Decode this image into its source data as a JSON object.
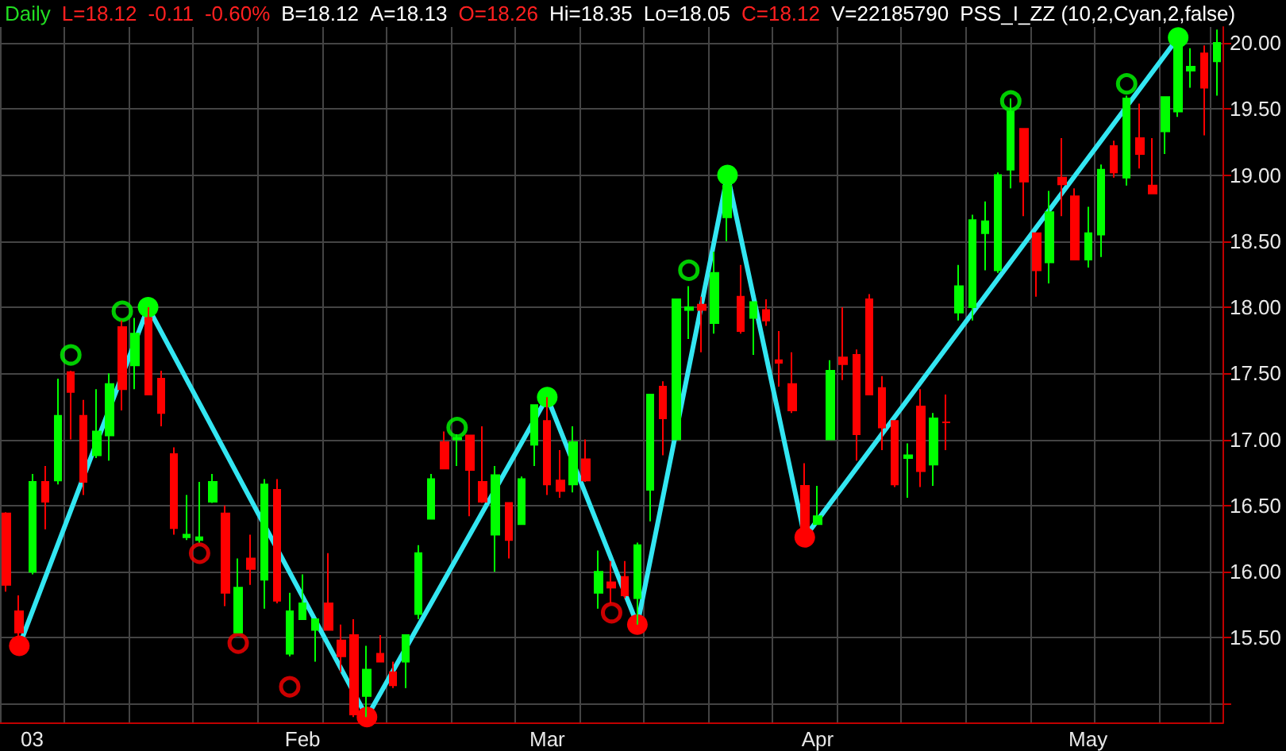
{
  "chart_data": {
    "type": "candlestick",
    "title": "Daily",
    "annotations": [
      "L=18.12",
      "-0.11",
      "-0.60%",
      "B=18.12",
      "A=18.13",
      "O=18.26",
      "Hi=18.35",
      "Lo=18.05",
      "C=18.12",
      "V=22185790",
      "PSS_I_ZZ (10,2,Cyan,2,false)"
    ],
    "categories": [
      null,
      null,
      "03",
      null,
      null,
      null,
      null,
      null,
      null,
      null,
      null,
      null,
      null,
      null,
      null,
      null,
      null,
      null,
      null,
      null,
      null,
      null,
      null,
      "Feb",
      null,
      null,
      null,
      null,
      null,
      null,
      null,
      null,
      null,
      null,
      null,
      null,
      null,
      null,
      null,
      null,
      null,
      null,
      "Mar",
      null,
      null,
      null,
      null,
      null,
      null,
      null,
      null,
      null,
      null,
      null,
      null,
      null,
      null,
      null,
      null,
      null,
      null,
      null,
      null,
      "Apr",
      null,
      null,
      null,
      null,
      null,
      null,
      null,
      null,
      null,
      null,
      null,
      null,
      null,
      null,
      null,
      null,
      null,
      null,
      null,
      null,
      "May",
      null,
      null,
      null,
      null,
      null,
      null,
      null,
      null,
      null,
      null
    ],
    "ohlc": [
      [
        16.44,
        16.45,
        15.85,
        15.9
      ],
      [
        15.7,
        15.82,
        15.44,
        15.54
      ],
      [
        16.0,
        16.74,
        15.98,
        16.68
      ],
      [
        16.68,
        16.8,
        16.32,
        16.53
      ],
      [
        16.69,
        17.46,
        16.66,
        17.18
      ],
      [
        17.51,
        17.52,
        17.0,
        17.36
      ],
      [
        17.18,
        17.3,
        16.58,
        16.68
      ],
      [
        16.88,
        17.38,
        16.86,
        17.06
      ],
      [
        17.03,
        17.5,
        16.84,
        17.42
      ],
      [
        17.85,
        17.9,
        17.22,
        17.38
      ],
      [
        17.56,
        17.92,
        17.38,
        17.8
      ],
      [
        17.92,
        18.0,
        17.34,
        17.34
      ],
      [
        17.46,
        17.52,
        17.1,
        17.2
      ],
      [
        16.89,
        16.94,
        16.28,
        16.33
      ],
      [
        16.26,
        16.58,
        16.24,
        16.28
      ],
      [
        16.24,
        16.68,
        16.22,
        16.26
      ],
      [
        16.53,
        16.74,
        16.52,
        16.68
      ],
      [
        16.44,
        16.5,
        15.74,
        15.84
      ],
      [
        15.54,
        16.1,
        15.54,
        15.88
      ],
      [
        16.1,
        16.28,
        15.9,
        16.02
      ],
      [
        15.94,
        16.7,
        15.72,
        16.66
      ],
      [
        16.62,
        16.7,
        15.76,
        15.78
      ],
      [
        15.38,
        15.84,
        15.36,
        15.7
      ],
      [
        15.64,
        15.98,
        15.64,
        15.76
      ],
      [
        15.56,
        15.64,
        15.32,
        15.64
      ],
      [
        15.76,
        16.14,
        15.56,
        15.56
      ],
      [
        15.48,
        15.6,
        15.24,
        15.36
      ],
      [
        15.52,
        15.64,
        14.9,
        14.92
      ],
      [
        15.06,
        15.44,
        14.9,
        15.26
      ],
      [
        15.38,
        15.52,
        15.32,
        15.32
      ],
      [
        15.24,
        15.32,
        15.12,
        15.14
      ],
      [
        15.32,
        15.52,
        15.12,
        15.52
      ],
      [
        15.68,
        16.2,
        15.64,
        16.14
      ],
      [
        16.4,
        16.74,
        16.4,
        16.7
      ],
      [
        16.98,
        17.06,
        16.78,
        16.78
      ],
      [
        17.0,
        17.04,
        16.8,
        17.01
      ],
      [
        17.03,
        17.03,
        16.42,
        16.77
      ],
      [
        16.68,
        17.1,
        16.52,
        16.53
      ],
      [
        16.28,
        16.8,
        16.0,
        16.73
      ],
      [
        16.52,
        16.52,
        16.1,
        16.24
      ],
      [
        16.36,
        16.72,
        16.36,
        16.7
      ],
      [
        16.96,
        17.26,
        16.8,
        17.26
      ],
      [
        17.14,
        17.32,
        16.58,
        16.66
      ],
      [
        16.69,
        16.92,
        16.56,
        16.61
      ],
      [
        16.66,
        17.1,
        16.6,
        16.98
      ],
      [
        16.85,
        17.0,
        16.68,
        16.69
      ],
      [
        15.84,
        16.16,
        15.72,
        16.0
      ],
      [
        15.92,
        16.08,
        15.76,
        15.88
      ],
      [
        15.96,
        16.08,
        15.8,
        15.82
      ],
      [
        15.8,
        16.22,
        15.6,
        16.2
      ],
      [
        16.62,
        17.34,
        16.38,
        17.34
      ],
      [
        17.4,
        17.44,
        16.88,
        17.16
      ],
      [
        17.0,
        18.06,
        17.0,
        18.06
      ],
      [
        17.98,
        18.16,
        17.76,
        18.0
      ],
      [
        18.02,
        18.08,
        17.66,
        17.98
      ],
      [
        17.88,
        18.42,
        17.8,
        18.26
      ],
      [
        18.68,
        19.0,
        18.5,
        18.92
      ],
      [
        18.08,
        18.32,
        17.8,
        17.82
      ],
      [
        17.92,
        18.04,
        17.64,
        18.04
      ],
      [
        17.98,
        18.06,
        17.86,
        17.9
      ],
      [
        17.6,
        17.82,
        17.4,
        17.58
      ],
      [
        17.42,
        17.66,
        17.2,
        17.22
      ],
      [
        16.65,
        16.82,
        16.26,
        16.28
      ],
      [
        16.36,
        16.65,
        16.36,
        16.42
      ],
      [
        17.0,
        17.6,
        17.0,
        17.52
      ],
      [
        17.62,
        18.0,
        17.45,
        17.57
      ],
      [
        17.64,
        17.68,
        16.84,
        17.04
      ],
      [
        18.06,
        18.1,
        17.34,
        17.34
      ],
      [
        17.39,
        17.48,
        16.92,
        17.09
      ],
      [
        17.14,
        17.14,
        16.64,
        16.66
      ],
      [
        16.86,
        16.97,
        16.56,
        16.88
      ],
      [
        17.25,
        17.38,
        16.64,
        16.76
      ],
      [
        16.81,
        17.2,
        16.65,
        17.16
      ],
      [
        17.13,
        17.34,
        16.92,
        17.13
      ],
      [
        17.96,
        18.32,
        17.9,
        18.16
      ],
      [
        18.0,
        18.7,
        17.9,
        18.66
      ],
      [
        18.56,
        18.8,
        18.28,
        18.65
      ],
      [
        18.28,
        19.02,
        18.26,
        19.0
      ],
      [
        19.04,
        19.58,
        18.9,
        19.48
      ],
      [
        19.35,
        19.35,
        18.69,
        18.95
      ],
      [
        18.56,
        18.56,
        18.08,
        18.28
      ],
      [
        18.34,
        18.88,
        18.18,
        18.72
      ],
      [
        18.98,
        19.28,
        18.69,
        18.93
      ],
      [
        18.84,
        18.9,
        18.36,
        18.36
      ],
      [
        18.36,
        18.76,
        18.3,
        18.56
      ],
      [
        18.55,
        19.08,
        18.38,
        19.04
      ],
      [
        19.22,
        19.26,
        18.98,
        19.02
      ],
      [
        18.98,
        19.6,
        18.92,
        19.58
      ],
      [
        19.28,
        19.54,
        19.05,
        19.16
      ],
      [
        18.92,
        19.28,
        18.86,
        18.86
      ],
      [
        19.33,
        19.59,
        19.16,
        19.59
      ],
      [
        19.48,
        20.04,
        19.44,
        20.02
      ],
      [
        19.79,
        19.96,
        19.66,
        19.82
      ],
      [
        19.92,
        19.98,
        19.3,
        19.66
      ],
      [
        19.86,
        20.1,
        19.6,
        20.0
      ]
    ],
    "series": [
      {
        "type": "line",
        "color": "#33e6f2",
        "marker": "circle",
        "line_style": "solid",
        "values": [
          null,
          15.44,
          null,
          null,
          null,
          null,
          null,
          null,
          null,
          null,
          null,
          18.0,
          null,
          null,
          null,
          null,
          null,
          null,
          null,
          null,
          null,
          null,
          null,
          null,
          null,
          null,
          null,
          null,
          14.9,
          null,
          null,
          null,
          null,
          null,
          null,
          null,
          null,
          null,
          null,
          null,
          null,
          null,
          17.32,
          null,
          null,
          null,
          null,
          null,
          null,
          15.6,
          null,
          null,
          null,
          null,
          null,
          null,
          19.0,
          null,
          null,
          null,
          null,
          null,
          16.26,
          null,
          null,
          null,
          null,
          null,
          null,
          null,
          null,
          null,
          null,
          null,
          null,
          null,
          null,
          null,
          null,
          null,
          null,
          null,
          null,
          null,
          null,
          null,
          null,
          null,
          null,
          null,
          null,
          20.04,
          null,
          null,
          null
        ],
        "colors": [
          null,
          "#ff0000",
          null,
          null,
          null,
          null,
          null,
          null,
          null,
          null,
          null,
          "#00ff00",
          null,
          null,
          null,
          null,
          null,
          null,
          null,
          null,
          null,
          null,
          null,
          null,
          null,
          null,
          null,
          null,
          "#ff0000",
          null,
          null,
          null,
          null,
          null,
          null,
          null,
          null,
          null,
          null,
          null,
          null,
          null,
          "#00ff00",
          null,
          null,
          null,
          null,
          null,
          null,
          "#ff0000",
          null,
          null,
          null,
          null,
          null,
          null,
          "#00ff00",
          null,
          null,
          null,
          null,
          null,
          "#ff0000",
          null,
          null,
          null,
          null,
          null,
          null,
          null,
          null,
          null,
          null,
          null,
          null,
          null,
          null,
          null,
          null,
          null,
          null,
          null,
          null,
          null,
          null,
          null,
          null,
          null,
          null,
          null,
          null,
          "#00ff00",
          null,
          null,
          null
        ]
      },
      {
        "type": "scatter",
        "color": "#00ff00",
        "marker": "circle",
        "values": [
          null,
          null,
          null,
          null,
          null,
          17.64,
          null,
          null,
          null,
          17.97,
          null,
          null,
          null,
          null,
          null,
          null,
          null,
          null,
          null,
          null,
          null,
          null,
          null,
          null,
          null,
          null,
          null,
          null,
          null,
          null,
          null,
          null,
          null,
          null,
          null,
          17.09,
          null,
          null,
          null,
          null,
          null,
          null,
          null,
          null,
          null,
          null,
          null,
          null,
          null,
          null,
          null,
          null,
          null,
          18.28,
          null,
          null,
          null,
          null,
          null,
          null,
          null,
          null,
          null,
          null,
          null,
          null,
          null,
          null,
          null,
          null,
          null,
          null,
          null,
          null,
          null,
          null,
          null,
          null,
          19.56,
          null,
          null,
          null,
          null,
          null,
          null,
          null,
          null,
          19.69,
          null,
          null,
          null,
          null,
          null,
          null,
          null
        ]
      },
      {
        "type": "scatter",
        "color": "#ff0000",
        "marker": "circle",
        "values": [
          null,
          null,
          null,
          null,
          null,
          null,
          null,
          null,
          null,
          null,
          null,
          null,
          null,
          null,
          null,
          16.14,
          null,
          null,
          15.46,
          null,
          null,
          null,
          15.13,
          null,
          null,
          null,
          null,
          null,
          null,
          null,
          null,
          null,
          null,
          null,
          null,
          null,
          null,
          null,
          null,
          null,
          null,
          null,
          null,
          null,
          null,
          null,
          null,
          15.69,
          null,
          null,
          null,
          null,
          null,
          null,
          null,
          null,
          null,
          null,
          null,
          null,
          null,
          null,
          null,
          null,
          null,
          null,
          null,
          null,
          null,
          null,
          null,
          null,
          null,
          null,
          null,
          null,
          null,
          null,
          null,
          null,
          null,
          null,
          null,
          null,
          null,
          null,
          null,
          null,
          null,
          null,
          null,
          null,
          null,
          null,
          null
        ]
      }
    ],
    "ylim": [
      14.86,
      20.12
    ],
    "yticks": [
      {
        "value": 15,
        "label": null
      },
      {
        "value": 15.5,
        "label": "15.50"
      },
      {
        "value": 16,
        "label": "16.00"
      },
      {
        "value": 16.5,
        "label": "16.50"
      },
      {
        "value": 17,
        "label": "17.00"
      },
      {
        "value": 17.5,
        "label": "17.50"
      },
      {
        "value": 18,
        "label": "18.00"
      },
      {
        "value": 18.5,
        "label": "18.50"
      },
      {
        "value": 19,
        "label": "19.00"
      },
      {
        "value": 19.5,
        "label": "19.50"
      },
      {
        "value": 20,
        "label": "20.00"
      }
    ],
    "grid": true
  }
}
